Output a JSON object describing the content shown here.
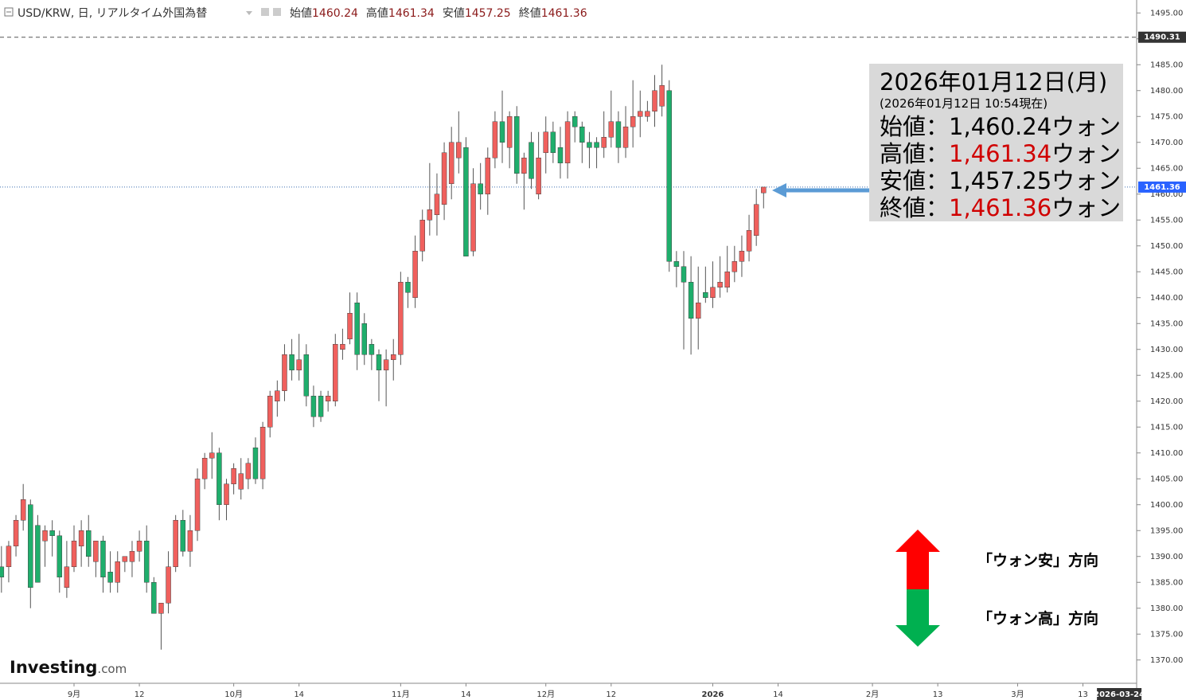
{
  "chart_data": {
    "type": "candlestick",
    "symbol": "USD/KRW, 日, リアルタイム外国為替",
    "header": [
      {
        "label": "始値",
        "value": 1460.24
      },
      {
        "label": "高値",
        "value": 1461.34
      },
      {
        "label": "安値",
        "value": 1457.25
      },
      {
        "label": "終値",
        "value": 1461.36
      }
    ],
    "up_color": "#f0605d",
    "down_color": "#1fae6c",
    "open": [
      1388,
      1388,
      1392,
      1397,
      1400,
      1396,
      1393,
      1395,
      1394,
      1384,
      1388,
      1392,
      1395,
      1389,
      1393,
      1387,
      1385,
      1389,
      1389,
      1391,
      1393,
      1385,
      1379,
      1381,
      1388,
      1397,
      1391,
      1395,
      1405,
      1409,
      1410,
      1400,
      1404,
      1403,
      1405,
      1411,
      1405,
      1415,
      1420,
      1422,
      1429,
      1426,
      1429,
      1421,
      1421,
      1420,
      1420,
      1430,
      1432,
      1439,
      1435,
      1431,
      1429,
      1426,
      1428,
      1429,
      1443,
      1440,
      1449,
      1455,
      1456,
      1458,
      1462,
      1467,
      1469,
      1449,
      1462,
      1460,
      1467,
      1474,
      1469,
      1475,
      1464,
      1470,
      1460,
      1468,
      1472,
      1469,
      1466,
      1475,
      1473,
      1470,
      1470,
      1469,
      1471,
      1474,
      1469,
      1473,
      1475,
      1475,
      1476,
      1477,
      1480,
      1447,
      1446,
      1443,
      1436,
      1441,
      1440,
      1442,
      1442,
      1445,
      1447,
      1449,
      1452,
      1460.24
    ],
    "high": [
      1392,
      1393,
      1398,
      1404,
      1401,
      1398,
      1396,
      1397,
      1395,
      1393,
      1396,
      1397,
      1398,
      1393,
      1394,
      1391,
      1391,
      1390,
      1393,
      1395,
      1396,
      1386,
      1381,
      1391,
      1398,
      1399,
      1398,
      1407,
      1410,
      1414,
      1411,
      1405,
      1408,
      1409,
      1409,
      1413,
      1416,
      1422,
      1424,
      1431,
      1432,
      1433,
      1431,
      1423,
      1422,
      1422,
      1433,
      1434,
      1441,
      1441,
      1437,
      1432,
      1430,
      1430,
      1432,
      1445,
      1444,
      1452,
      1457,
      1466,
      1464,
      1470,
      1473,
      1476,
      1471,
      1465,
      1466,
      1469,
      1476,
      1480,
      1476,
      1477,
      1468,
      1472,
      1472,
      1475,
      1474,
      1473,
      1476,
      1476,
      1474,
      1472,
      1471,
      1476,
      1480,
      1476,
      1477,
      1482,
      1480,
      1478,
      1483,
      1485,
      1482,
      1449,
      1449,
      1448,
      1446,
      1446,
      1447,
      1448,
      1450,
      1450,
      1452,
      1456,
      1461,
      1461.34
    ],
    "low": [
      1383,
      1385,
      1390,
      1395,
      1380,
      1385,
      1388,
      1390,
      1383,
      1382,
      1387,
      1388,
      1388,
      1386,
      1383,
      1383,
      1383,
      1387,
      1386,
      1389,
      1383,
      1379,
      1372,
      1379,
      1387,
      1390,
      1388,
      1393,
      1403,
      1405,
      1397,
      1397,
      1402,
      1401,
      1403,
      1404,
      1403,
      1413,
      1417,
      1420,
      1424,
      1424,
      1419,
      1415,
      1416,
      1418,
      1419,
      1428,
      1431,
      1426,
      1427,
      1426,
      1420,
      1419,
      1424,
      1427,
      1438,
      1438,
      1447,
      1452,
      1452,
      1455,
      1459,
      1464,
      1448,
      1448,
      1457,
      1456,
      1465,
      1466,
      1465,
      1462,
      1457,
      1461,
      1459,
      1464,
      1466,
      1463,
      1463,
      1470,
      1466,
      1465,
      1465,
      1467,
      1469,
      1466,
      1467,
      1469,
      1471,
      1474,
      1473,
      1475,
      1445,
      1442,
      1430,
      1429,
      1430,
      1439,
      1438,
      1440,
      1441,
      1443,
      1444,
      1447,
      1450,
      1457.25
    ],
    "close": [
      1386,
      1392,
      1397,
      1401,
      1384,
      1385,
      1395,
      1394,
      1386,
      1388,
      1393,
      1395,
      1390,
      1393,
      1386,
      1385,
      1389,
      1390,
      1391,
      1393,
      1385,
      1379,
      1381,
      1388,
      1397,
      1391,
      1395,
      1405,
      1409,
      1410,
      1400,
      1404,
      1407,
      1406,
      1408,
      1405,
      1415,
      1421,
      1422,
      1429,
      1426,
      1428,
      1421,
      1417,
      1417,
      1421,
      1431,
      1431,
      1437,
      1429,
      1429,
      1429,
      1426,
      1428,
      1429,
      1443,
      1441,
      1449,
      1455,
      1457,
      1460,
      1468,
      1470,
      1470,
      1448,
      1462,
      1460,
      1467,
      1474,
      1470,
      1475,
      1464,
      1467,
      1463,
      1467,
      1472,
      1468,
      1466,
      1474,
      1473,
      1470,
      1469,
      1469,
      1471,
      1474,
      1469,
      1473,
      1475,
      1476,
      1476,
      1480,
      1481,
      1447,
      1446,
      1443,
      1436,
      1439,
      1440,
      1442,
      1443,
      1445,
      1447,
      1449,
      1453,
      1458,
      1461.36
    ],
    "xlim": [
      -0.2,
      156.4
    ],
    "ylim": [
      1365.5,
      1497.5
    ],
    "xticks": [
      {
        "value": 10,
        "label": "9月"
      },
      {
        "value": 19,
        "label": "12"
      },
      {
        "value": 32,
        "label": "10月"
      },
      {
        "value": 41,
        "label": "14"
      },
      {
        "value": 55,
        "label": "11月"
      },
      {
        "value": 64,
        "label": "14"
      },
      {
        "value": 75,
        "label": "12月"
      },
      {
        "value": 84,
        "label": "12"
      },
      {
        "value": 98,
        "label": "2026"
      },
      {
        "value": 107,
        "label": "14"
      },
      {
        "value": 120,
        "label": "2月"
      },
      {
        "value": 129,
        "label": "13"
      },
      {
        "value": 140,
        "label": "3月"
      },
      {
        "value": 149,
        "label": "13"
      }
    ],
    "x_cursor": {
      "value": 154,
      "label": "2026-03-24"
    },
    "yticks": [
      {
        "value": 1370,
        "label": "1370.00"
      },
      {
        "value": 1375,
        "label": "1375.00"
      },
      {
        "value": 1380,
        "label": "1380.00"
      },
      {
        "value": 1385,
        "label": "1385.00"
      },
      {
        "value": 1390,
        "label": "1390.00"
      },
      {
        "value": 1395,
        "label": "1395.00"
      },
      {
        "value": 1400,
        "label": "1400.00"
      },
      {
        "value": 1405,
        "label": "1405.00"
      },
      {
        "value": 1410,
        "label": "1410.00"
      },
      {
        "value": 1415,
        "label": "1415.00"
      },
      {
        "value": 1420,
        "label": "1420.00"
      },
      {
        "value": 1425,
        "label": "1425.00"
      },
      {
        "value": 1430,
        "label": "1430.00"
      },
      {
        "value": 1435,
        "label": "1435.00"
      },
      {
        "value": 1440,
        "label": "1440.00"
      },
      {
        "value": 1445,
        "label": "1445.00"
      },
      {
        "value": 1450,
        "label": "1450.00"
      },
      {
        "value": 1455,
        "label": "1455.00"
      },
      {
        "value": 1460,
        "label": "1460.00"
      },
      {
        "value": 1465,
        "label": "1465.00"
      },
      {
        "value": 1470,
        "label": "1470.00"
      },
      {
        "value": 1475,
        "label": "1475.00"
      },
      {
        "value": 1480,
        "label": "1480.00"
      },
      {
        "value": 1485,
        "label": "1485.00"
      },
      {
        "value": 1490,
        "label": "1490.00"
      },
      {
        "value": 1495,
        "label": "1495.00"
      }
    ],
    "reference_lines": [
      {
        "value": 1490.31,
        "style": "dashed",
        "color": "#555555",
        "label_color": "#333333"
      },
      {
        "value": 1461.36,
        "style": "dotted",
        "color": "#3d6fb0",
        "label_color": "#2962ff"
      }
    ],
    "annotation": {
      "date": "2026年01月12日(月)",
      "as_of": "(2026年01月12日 10:54現在)",
      "rows": [
        {
          "label": "始値",
          "separator": "：",
          "value": "1,460.24",
          "unit": "ウォン",
          "color": "#000000"
        },
        {
          "label": "高値",
          "separator": "：",
          "value": "1,461.34",
          "unit": "ウォン",
          "color": "#d00000"
        },
        {
          "label": "安値",
          "separator": "：",
          "value": "1,457.25",
          "unit": "ウォン",
          "color": "#000000"
        },
        {
          "label": "終値",
          "separator": "：",
          "value": "1,461.36",
          "unit": "ウォン",
          "color": "#d00000"
        }
      ]
    },
    "direction_legend": {
      "up": "「ウォン安」方向",
      "down": "「ウォン高」方向"
    },
    "logo": {
      "main": "Investing",
      "suffix": ".com"
    }
  }
}
